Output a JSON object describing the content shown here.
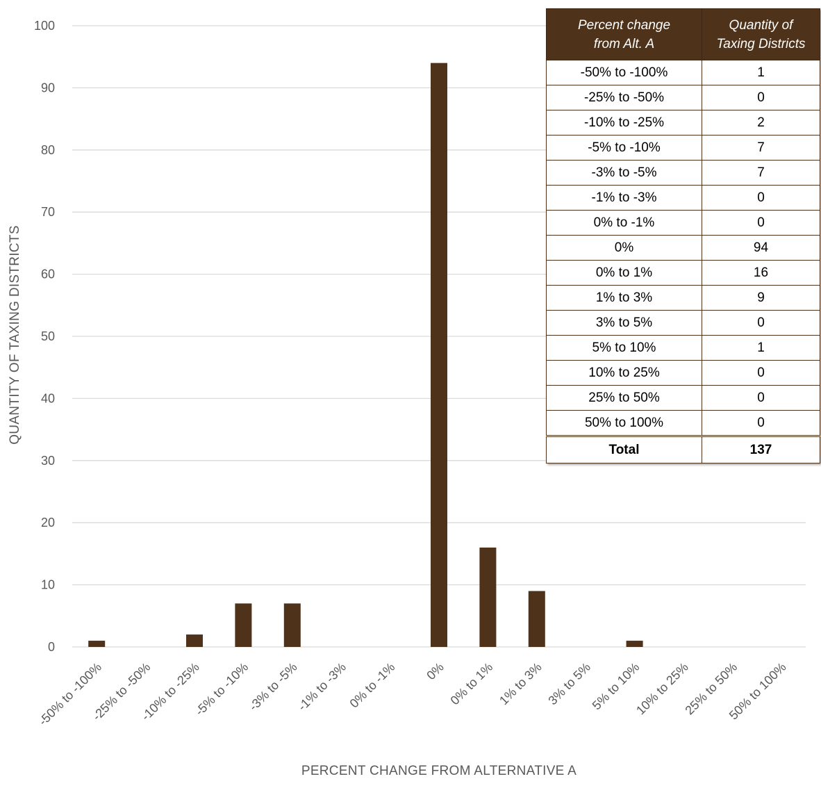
{
  "chart_data": {
    "type": "bar",
    "categories": [
      "-50% to -100%",
      "-25% to -50%",
      "-10% to -25%",
      "-5% to -10%",
      "-3% to -5%",
      "-1% to -3%",
      "0% to -1%",
      "0%",
      "0% to 1%",
      "1% to 3%",
      "3% to 5%",
      "5% to 10%",
      "10% to 25%",
      "25% to 50%",
      "50% to 100%"
    ],
    "values": [
      1,
      0,
      2,
      7,
      7,
      0,
      0,
      94,
      16,
      9,
      0,
      1,
      0,
      0,
      0
    ],
    "xlabel": "PERCENT CHANGE FROM ALTERNATIVE A",
    "ylabel": "QUANTITY OF TAXING DISTRICTS",
    "ylim": [
      0,
      100
    ],
    "yticks": [
      0,
      10,
      20,
      30,
      40,
      50,
      60,
      70,
      80,
      90,
      100
    ],
    "grid": true,
    "bar_color": "#4e3219",
    "grid_color": "#d9d9d9"
  },
  "table": {
    "header_line1_col1": "Percent change",
    "header_line2_col1": "from Alt. A",
    "header_line1_col2": "Quantity of",
    "header_line2_col2": "Taxing Districts",
    "rows": [
      {
        "range": "-50% to -100%",
        "count": "1"
      },
      {
        "range": "-25% to -50%",
        "count": "0"
      },
      {
        "range": "-10% to -25%",
        "count": "2"
      },
      {
        "range": "-5% to -10%",
        "count": "7"
      },
      {
        "range": "-3% to -5%",
        "count": "7"
      },
      {
        "range": "-1% to -3%",
        "count": "0"
      },
      {
        "range": "0% to -1%",
        "count": "0"
      },
      {
        "range": "0%",
        "count": "94"
      },
      {
        "range": "0% to 1%",
        "count": "16"
      },
      {
        "range": "1% to 3%",
        "count": "9"
      },
      {
        "range": "3% to 5%",
        "count": "0"
      },
      {
        "range": "5% to 10%",
        "count": "1"
      },
      {
        "range": "10% to 25%",
        "count": "0"
      },
      {
        "range": "25% to 50%",
        "count": "0"
      },
      {
        "range": "50% to 100%",
        "count": "0"
      }
    ],
    "total_label": "Total",
    "total_value": "137",
    "header_color": "#4e3219"
  }
}
